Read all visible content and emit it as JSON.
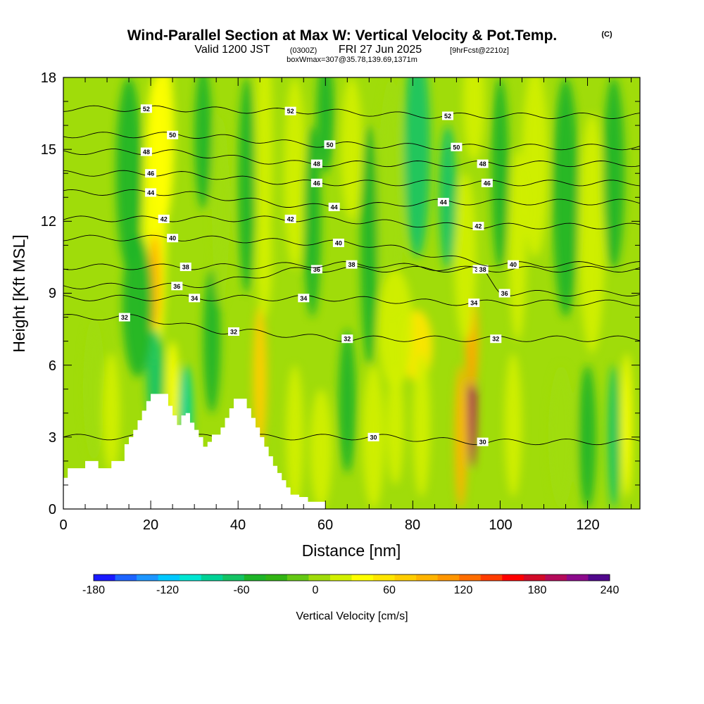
{
  "chart_data": {
    "type": "heatmap",
    "title": "Wind-Parallel Section at Max W: Vertical Velocity & Pot.Temp.",
    "title_mark": "(C)",
    "subtitle": {
      "valid": "Valid 1200 JST",
      "utc": "(0300Z)",
      "date": "FRI 27 Jun 2025",
      "forecast": "[9hrFcst@2210z]",
      "box": "boxWmax=307@35.78,139.69,1371m"
    },
    "xlabel": "Distance [nm]",
    "ylabel": "Height [Kft MSL]",
    "xlim": [
      0,
      132
    ],
    "ylim": [
      0,
      18
    ],
    "x_ticks": [
      "0",
      "20",
      "40",
      "60",
      "80",
      "100",
      "120"
    ],
    "y_ticks": [
      "0",
      "3",
      "6",
      "9",
      "12",
      "15",
      "18"
    ],
    "colorbar": {
      "title": "Vertical Velocity [cm/s]",
      "min": -180,
      "max": 240,
      "step": 20,
      "tick_labels": [
        "-180",
        "-120",
        "-60",
        "0",
        "60",
        "120",
        "180",
        "240"
      ],
      "colors": [
        "#1a1aff",
        "#1e64ff",
        "#1e96ff",
        "#00c8ff",
        "#00e6d2",
        "#00d296",
        "#14c364",
        "#1eb428",
        "#32b414",
        "#64c814",
        "#a0dc0a",
        "#d2f000",
        "#ffff00",
        "#ffe600",
        "#ffcd00",
        "#ffb400",
        "#ff9600",
        "#ff6e00",
        "#ff3c00",
        "#ff0000",
        "#d20a28",
        "#b40a5a",
        "#8c0a8c",
        "#50088c"
      ]
    },
    "terrain_profile": [
      [
        0,
        1.3
      ],
      [
        1,
        1.7
      ],
      [
        4,
        1.7
      ],
      [
        5,
        2.0
      ],
      [
        7,
        2.0
      ],
      [
        8,
        1.7
      ],
      [
        10,
        1.7
      ],
      [
        11,
        2.0
      ],
      [
        13,
        2.0
      ],
      [
        14,
        2.7
      ],
      [
        15,
        3.0
      ],
      [
        16,
        3.3
      ],
      [
        17,
        3.7
      ],
      [
        18,
        4.1
      ],
      [
        19,
        4.5
      ],
      [
        20,
        4.8
      ],
      [
        23,
        4.8
      ],
      [
        24,
        4.3
      ],
      [
        25,
        3.9
      ],
      [
        26,
        3.5
      ],
      [
        27,
        3.9
      ],
      [
        28,
        4.0
      ],
      [
        29,
        3.6
      ],
      [
        30,
        3.3
      ],
      [
        31,
        3.0
      ],
      [
        32,
        2.6
      ],
      [
        33,
        2.8
      ],
      [
        34,
        3.1
      ],
      [
        36,
        3.4
      ],
      [
        37,
        3.8
      ],
      [
        38,
        4.2
      ],
      [
        39,
        4.6
      ],
      [
        41,
        4.6
      ],
      [
        42,
        4.2
      ],
      [
        43,
        3.8
      ],
      [
        44,
        3.4
      ],
      [
        45,
        3.0
      ],
      [
        46,
        2.6
      ],
      [
        47,
        2.2
      ],
      [
        48,
        1.8
      ],
      [
        49,
        1.5
      ],
      [
        50,
        1.2
      ],
      [
        51,
        0.9
      ],
      [
        52,
        0.6
      ],
      [
        54,
        0.5
      ],
      [
        56,
        0.3
      ],
      [
        58,
        0.3
      ],
      [
        60,
        0.0
      ],
      [
        132,
        0.0
      ]
    ],
    "theta_contours": [
      {
        "label": "30",
        "anchors": [
          [
            71,
            3.0
          ],
          [
            96,
            2.8
          ]
        ]
      },
      {
        "label": "32",
        "anchors": [
          [
            14,
            8.0
          ],
          [
            39,
            7.4
          ],
          [
            65,
            7.1
          ],
          [
            99,
            7.1
          ]
        ]
      },
      {
        "label": "34",
        "anchors": [
          [
            30,
            8.8
          ],
          [
            55,
            8.8
          ],
          [
            94,
            8.6
          ]
        ]
      },
      {
        "label": "36",
        "anchors": [
          [
            26,
            9.3
          ],
          [
            58,
            10.0
          ],
          [
            95,
            10.0
          ],
          [
            101,
            9.0
          ]
        ]
      },
      {
        "label": "38",
        "anchors": [
          [
            28,
            10.1
          ],
          [
            66,
            10.2
          ],
          [
            96,
            10.0
          ]
        ]
      },
      {
        "label": "40",
        "anchors": [
          [
            25,
            11.3
          ],
          [
            63,
            11.1
          ],
          [
            103,
            10.2
          ]
        ]
      },
      {
        "label": "42",
        "anchors": [
          [
            23,
            12.1
          ],
          [
            52,
            12.1
          ],
          [
            95,
            11.8
          ]
        ]
      },
      {
        "label": "44",
        "anchors": [
          [
            20,
            13.2
          ],
          [
            62,
            12.6
          ],
          [
            87,
            12.8
          ]
        ]
      },
      {
        "label": "46",
        "anchors": [
          [
            20,
            14.0
          ],
          [
            58,
            13.6
          ],
          [
            97,
            13.6
          ]
        ]
      },
      {
        "label": "48",
        "anchors": [
          [
            19,
            14.9
          ],
          [
            58,
            14.4
          ],
          [
            96,
            14.4
          ]
        ]
      },
      {
        "label": "50",
        "anchors": [
          [
            25,
            15.6
          ],
          [
            61,
            15.2
          ],
          [
            90,
            15.1
          ]
        ]
      },
      {
        "label": "52",
        "anchors": [
          [
            19,
            16.7
          ],
          [
            52,
            16.6
          ],
          [
            88,
            16.4
          ]
        ]
      }
    ],
    "velocity_features": [
      {
        "x": 21,
        "y": 12.0,
        "w": 2.6,
        "h": 6.0,
        "v": 70
      },
      {
        "x": 23,
        "y": 15.5,
        "w": 2.4,
        "h": 3.5,
        "v": 60
      },
      {
        "x": 21,
        "y": 9.5,
        "w": 1.4,
        "h": 2.0,
        "v": 120
      },
      {
        "x": 21,
        "y": 5.5,
        "w": 2.0,
        "h": 2.0,
        "v": -60
      },
      {
        "x": 17,
        "y": 8.5,
        "w": 3.5,
        "h": 3.0,
        "v": -40
      },
      {
        "x": 28,
        "y": 4.0,
        "w": 1.6,
        "h": 2.0,
        "v": -80
      },
      {
        "x": 15,
        "y": 14.0,
        "w": 3.0,
        "h": 4.0,
        "v": -30
      },
      {
        "x": 25,
        "y": 5.0,
        "w": 1.4,
        "h": 2.0,
        "v": 60
      },
      {
        "x": 45,
        "y": 5.5,
        "w": 1.6,
        "h": 3.0,
        "v": 100
      },
      {
        "x": 46,
        "y": 15.0,
        "w": 2.0,
        "h": 5.0,
        "v": 50
      },
      {
        "x": 46,
        "y": 10.5,
        "w": 1.8,
        "h": 2.5,
        "v": 40
      },
      {
        "x": 42,
        "y": 13.5,
        "w": 2.0,
        "h": 4.5,
        "v": -40
      },
      {
        "x": 53,
        "y": 14.0,
        "w": 2.5,
        "h": 4.0,
        "v": 40
      },
      {
        "x": 57,
        "y": 12.0,
        "w": 2.0,
        "h": 4.0,
        "v": -40
      },
      {
        "x": 60,
        "y": 16.5,
        "w": 2.0,
        "h": 2.5,
        "v": -30
      },
      {
        "x": 66,
        "y": 15.0,
        "w": 2.5,
        "h": 3.0,
        "v": 40
      },
      {
        "x": 70,
        "y": 11.0,
        "w": 2.0,
        "h": 5.0,
        "v": -30
      },
      {
        "x": 75,
        "y": 13.0,
        "w": 3.0,
        "h": 5.0,
        "v": 30
      },
      {
        "x": 81,
        "y": 15.0,
        "w": 3.0,
        "h": 4.5,
        "v": -60
      },
      {
        "x": 81,
        "y": 6.8,
        "w": 3.5,
        "h": 1.5,
        "v": 80
      },
      {
        "x": 76,
        "y": 7.5,
        "w": 4.0,
        "h": 2.5,
        "v": 40
      },
      {
        "x": 53,
        "y": 3.0,
        "w": 2.0,
        "h": 3.0,
        "v": 50
      },
      {
        "x": 59,
        "y": 2.5,
        "w": 2.5,
        "h": 2.5,
        "v": 40
      },
      {
        "x": 65,
        "y": 4.5,
        "w": 2.0,
        "h": 3.0,
        "v": -30
      },
      {
        "x": 71,
        "y": 3.0,
        "w": 2.5,
        "h": 3.0,
        "v": 50
      },
      {
        "x": 76,
        "y": 3.5,
        "w": 2.0,
        "h": 2.5,
        "v": 40
      },
      {
        "x": 82,
        "y": 3.5,
        "w": 2.0,
        "h": 3.0,
        "v": 50
      },
      {
        "x": 93.5,
        "y": 4.5,
        "w": 1.0,
        "h": 2.8,
        "v": 240
      },
      {
        "x": 93.5,
        "y": 7.0,
        "w": 1.5,
        "h": 2.0,
        "v": 120
      },
      {
        "x": 91,
        "y": 3.0,
        "w": 1.4,
        "h": 3.0,
        "v": 130
      },
      {
        "x": 92,
        "y": 10.5,
        "w": 2.5,
        "h": 3.5,
        "v": 40
      },
      {
        "x": 88,
        "y": 13.0,
        "w": 2.0,
        "h": 3.0,
        "v": -50
      },
      {
        "x": 94,
        "y": 17.0,
        "w": 2.5,
        "h": 2.5,
        "v": 50
      },
      {
        "x": 100,
        "y": 14.0,
        "w": 2.0,
        "h": 4.0,
        "v": -30
      },
      {
        "x": 104,
        "y": 11.0,
        "w": 2.0,
        "h": 4.0,
        "v": 40
      },
      {
        "x": 108,
        "y": 14.5,
        "w": 3.0,
        "h": 4.0,
        "v": 40
      },
      {
        "x": 115,
        "y": 13.0,
        "w": 3.0,
        "h": 5.0,
        "v": -30
      },
      {
        "x": 121,
        "y": 11.5,
        "w": 3.0,
        "h": 5.0,
        "v": 40
      },
      {
        "x": 126,
        "y": 14.0,
        "w": 2.5,
        "h": 4.0,
        "v": -30
      },
      {
        "x": 103,
        "y": 3.5,
        "w": 2.0,
        "h": 3.0,
        "v": 40
      },
      {
        "x": 114,
        "y": 3.0,
        "w": 3.0,
        "h": 3.0,
        "v": 30
      },
      {
        "x": 120,
        "y": 3.0,
        "w": 2.0,
        "h": 3.0,
        "v": -30
      },
      {
        "x": 126,
        "y": 3.0,
        "w": 1.4,
        "h": 3.0,
        "v": -60
      },
      {
        "x": 129,
        "y": 3.5,
        "w": 1.2,
        "h": 3.0,
        "v": 60
      },
      {
        "x": 7,
        "y": 5.0,
        "w": 2.5,
        "h": 3.0,
        "v": 30
      },
      {
        "x": 11,
        "y": 4.0,
        "w": 2.0,
        "h": 2.5,
        "v": 40
      },
      {
        "x": 34,
        "y": 7.0,
        "w": 2.0,
        "h": 3.0,
        "v": -40
      },
      {
        "x": 36,
        "y": 12.5,
        "w": 2.0,
        "h": 4.0,
        "v": 30
      },
      {
        "x": 32,
        "y": 15.5,
        "w": 2.0,
        "h": 3.0,
        "v": -30
      }
    ]
  }
}
